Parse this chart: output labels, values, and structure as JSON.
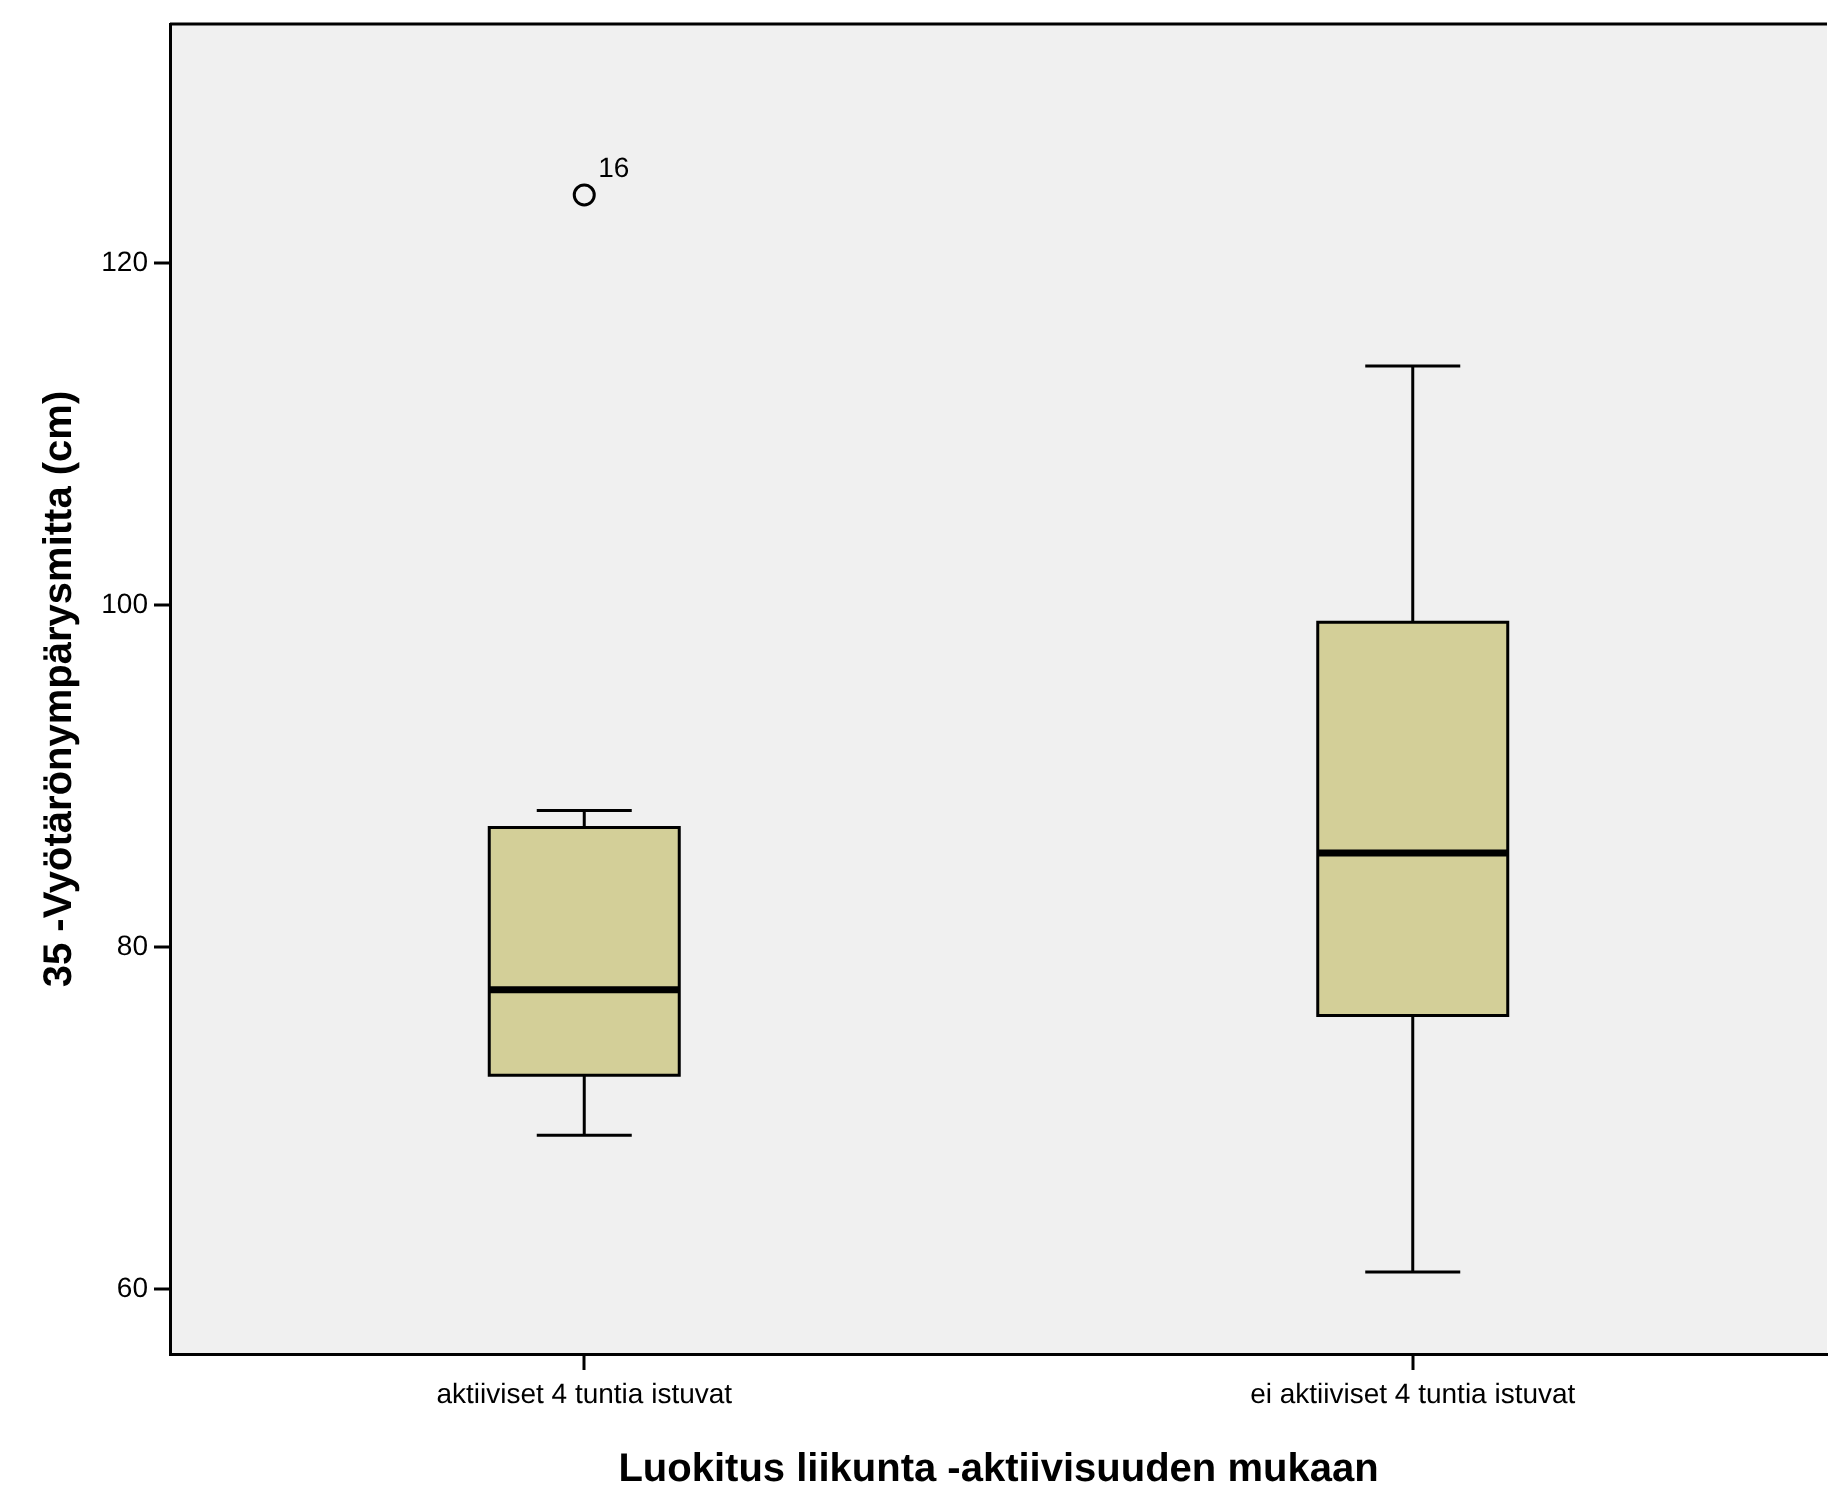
{
  "chart_data": {
    "type": "box",
    "xlabel": "Luokitus liikunta -aktiivisuuden mukaan",
    "ylabel": "35 -Vyötärönympärysmitta (cm)",
    "categories": [
      "aktiiviset 4 tuntia istuvat",
      "ei aktiiviset 4 tuntia istuvat"
    ],
    "color": "#d3cf98",
    "boxes": [
      {
        "low": 69,
        "q1": 72.5,
        "median": 77.5,
        "q3": 87,
        "high": 88,
        "outliers": [
          124
        ]
      },
      {
        "low": 61,
        "q1": 76,
        "median": 85.5,
        "q3": 99,
        "high": 114
      }
    ],
    "ylim": [
      56.2,
      134
    ],
    "yticks": [
      60,
      80,
      100,
      120
    ],
    "annotations": [
      "16"
    ]
  }
}
